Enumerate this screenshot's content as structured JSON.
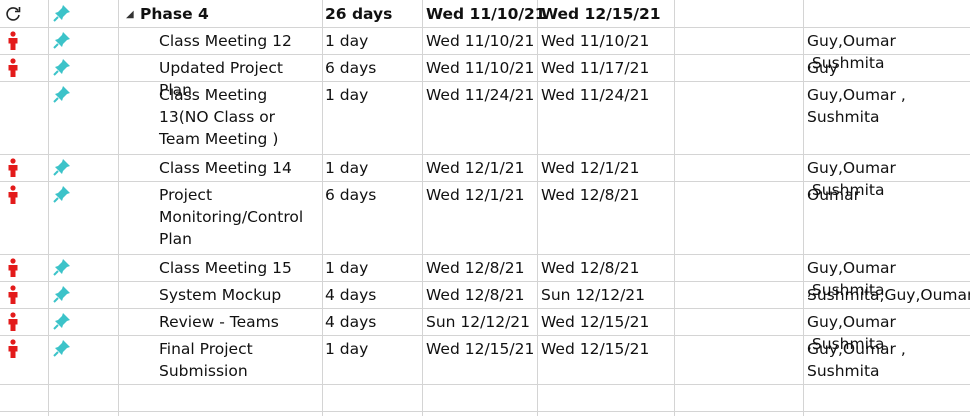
{
  "header_icons": {
    "refresh": "refresh-icon",
    "pin": "pin-icon"
  },
  "summary": {
    "name": "Phase 4",
    "duration": "26 days",
    "start": "Wed 11/10/21",
    "finish": "Wed 12/15/21"
  },
  "colors": {
    "person": "#e31b1b",
    "pin": "#3cc3c9",
    "grid": "#d4d4d4"
  },
  "tasks": [
    {
      "name": "Class Meeting 12",
      "duration": "1 day",
      "start": "Wed 11/10/21",
      "finish": "Wed 11/10/21",
      "resources": "Guy,Oumar ,Sushmita",
      "indicator": "person-icon"
    },
    {
      "name": "Updated Project Plan",
      "duration": "6 days",
      "start": "Wed 11/10/21",
      "finish": "Wed 11/17/21",
      "resources": "Guy",
      "indicator": "person-icon"
    },
    {
      "name": "Class Meeting 13(NO Class or Team Meeting )",
      "duration": "1 day",
      "start": "Wed 11/24/21",
      "finish": "Wed 11/24/21",
      "resources": "Guy,Oumar , Sushmita",
      "indicator": ""
    },
    {
      "name": "Class Meeting 14",
      "duration": "1 day",
      "start": "Wed 12/1/21",
      "finish": "Wed 12/1/21",
      "resources": "Guy,Oumar ,Sushmita",
      "indicator": "person-icon"
    },
    {
      "name": "Project Monitoring/Control Plan",
      "duration": "6 days",
      "start": "Wed 12/1/21",
      "finish": "Wed 12/8/21",
      "resources": "Oumar",
      "indicator": "person-icon"
    },
    {
      "name": "Class Meeting 15",
      "duration": "1 day",
      "start": "Wed 12/8/21",
      "finish": "Wed 12/8/21",
      "resources": "Guy,Oumar ,Sushmita",
      "indicator": "person-icon"
    },
    {
      "name": "System Mockup",
      "duration": "4 days",
      "start": "Wed 12/8/21",
      "finish": "Sun 12/12/21",
      "resources": "Sushmita,Guy,Oumar",
      "indicator": "person-icon"
    },
    {
      "name": "Review - Teams",
      "duration": "4 days",
      "start": "Sun 12/12/21",
      "finish": "Wed 12/15/21",
      "resources": "Guy,Oumar ,Sushmita",
      "indicator": "person-icon"
    },
    {
      "name": " Final Project Submission",
      "duration": "1 day",
      "start": "Wed 12/15/21",
      "finish": "Wed 12/15/21",
      "resources": "Guy,Oumar , Sushmita",
      "indicator": "person-icon"
    }
  ]
}
